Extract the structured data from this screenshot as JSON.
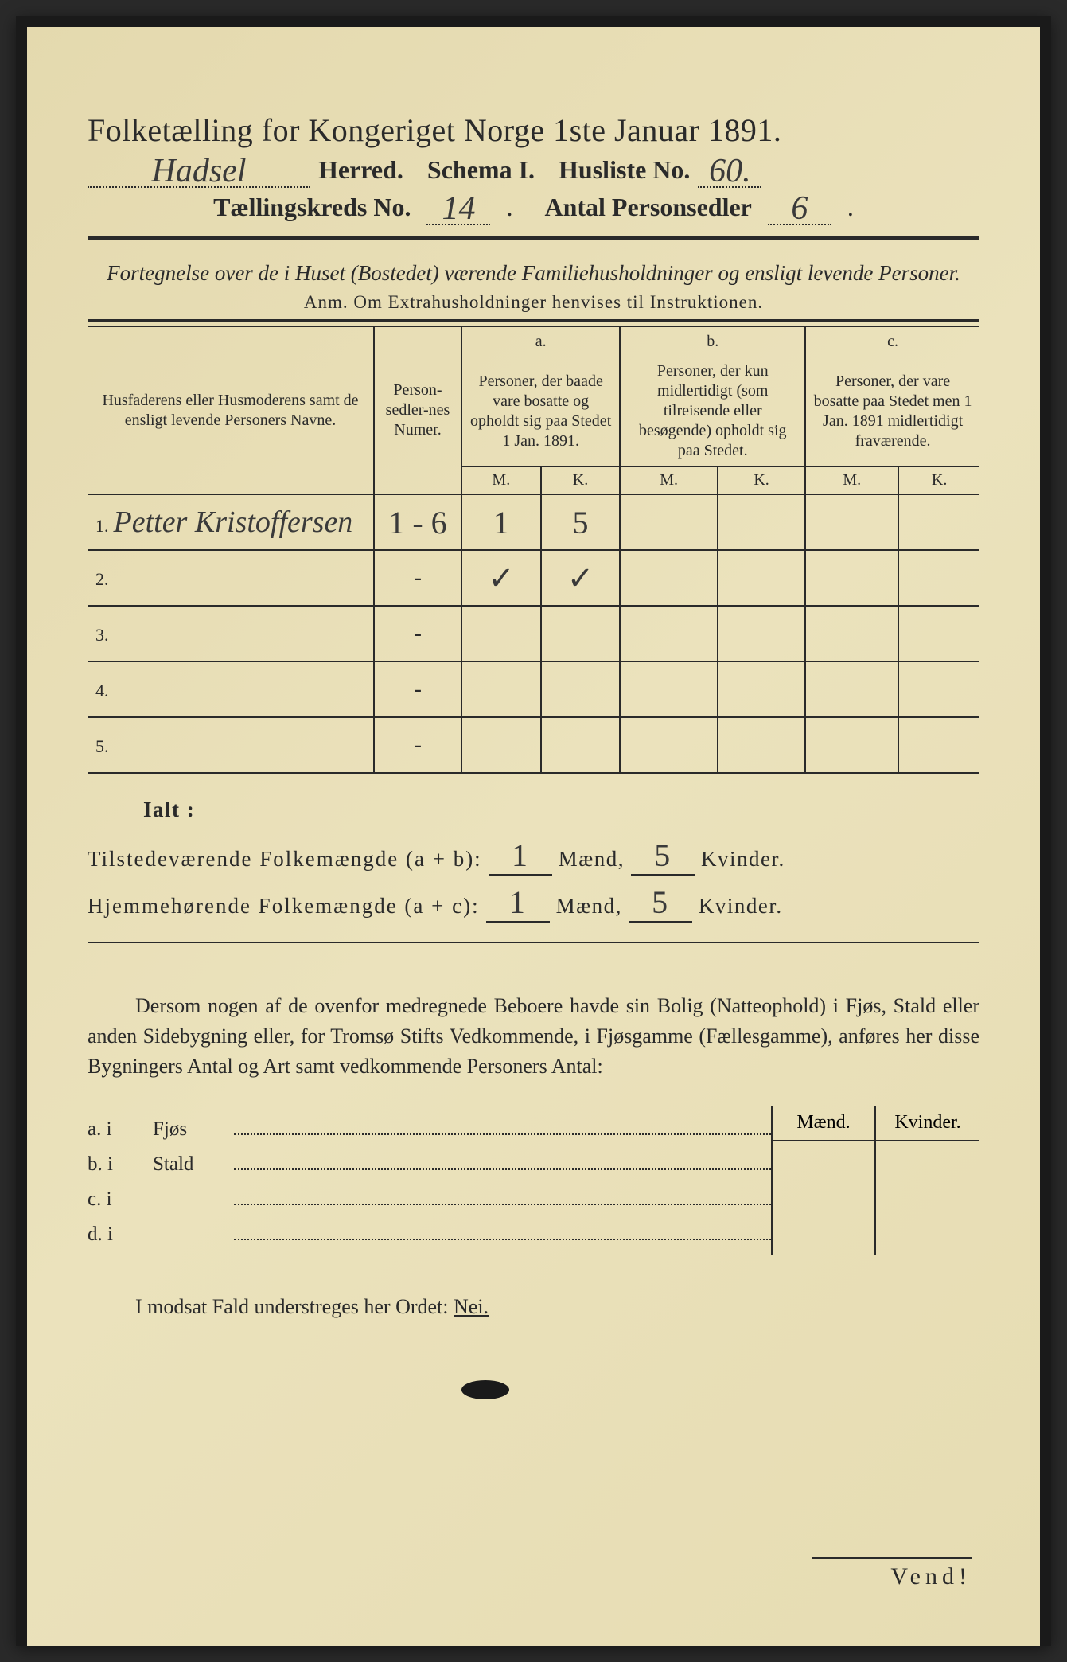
{
  "title": "Folketælling for Kongeriget Norge 1ste Januar 1891.",
  "header": {
    "herred_value": "Hadsel",
    "herred_label": "Herred.",
    "schema_label": "Schema I.",
    "husliste_label": "Husliste No.",
    "husliste_value": "60.",
    "kreds_label": "Tællingskreds No.",
    "kreds_value": "14",
    "antal_label": "Antal Personsedler",
    "antal_value": "6"
  },
  "subtitle": "Fortegnelse over de i Huset (Bostedet) værende Familiehusholdninger og ensligt levende Personer.",
  "anm": "Anm.  Om Extrahusholdninger henvises til Instruktionen.",
  "table": {
    "col_names": "Husfaderens eller Husmoderens samt de ensligt levende Personers Navne.",
    "col_numer": "Person-sedler-nes Numer.",
    "col_a_hdr": "a.",
    "col_a": "Personer, der baade vare bosatte og opholdt sig paa Stedet 1 Jan. 1891.",
    "col_b_hdr": "b.",
    "col_b": "Personer, der kun midlertidigt (som tilreisende eller besøgende) opholdt sig paa Stedet.",
    "col_c_hdr": "c.",
    "col_c": "Personer, der vare bosatte paa Stedet men 1 Jan. 1891 midlertidigt fraværende.",
    "m": "M.",
    "k": "K.",
    "rows": [
      {
        "num": "1.",
        "name": "Petter Kristoffersen",
        "numer": "1 - 6",
        "am": "1",
        "ak": "5",
        "bm": "",
        "bk": "",
        "cm": "",
        "ck": ""
      },
      {
        "num": "2.",
        "name": "",
        "numer": "-",
        "am": "✓",
        "ak": "✓",
        "bm": "",
        "bk": "",
        "cm": "",
        "ck": ""
      },
      {
        "num": "3.",
        "name": "",
        "numer": "-",
        "am": "",
        "ak": "",
        "bm": "",
        "bk": "",
        "cm": "",
        "ck": ""
      },
      {
        "num": "4.",
        "name": "",
        "numer": "-",
        "am": "",
        "ak": "",
        "bm": "",
        "bk": "",
        "cm": "",
        "ck": ""
      },
      {
        "num": "5.",
        "name": "",
        "numer": "-",
        "am": "",
        "ak": "",
        "bm": "",
        "bk": "",
        "cm": "",
        "ck": ""
      }
    ]
  },
  "ialt": {
    "label": "Ialt :",
    "row1_label": "Tilstedeværende Folkemængde (a + b):",
    "row2_label": "Hjemmehørende Folkemængde (a + c):",
    "maend": "Mænd,",
    "kvinder": "Kvinder.",
    "r1_m": "1",
    "r1_k": "5",
    "r2_m": "1",
    "r2_k": "5"
  },
  "para": "Dersom nogen af de ovenfor medregnede Beboere havde sin Bolig (Natteophold) i Fjøs, Stald eller anden Sidebygning eller, for Tromsø Stifts Vedkommende, i Fjøsgamme (Fællesgamme), anføres her disse Bygningers Antal og Art samt vedkommende Personers Antal:",
  "side": {
    "maend": "Mænd.",
    "kvinder": "Kvinder.",
    "rows": [
      {
        "lead": "a.  i",
        "label": "Fjøs"
      },
      {
        "lead": "b.  i",
        "label": "Stald"
      },
      {
        "lead": "c.  i",
        "label": ""
      },
      {
        "lead": "d.  i",
        "label": ""
      }
    ]
  },
  "nei": "I modsat Fald understreges her Ordet:",
  "nei_word": "Nei.",
  "vend": "Vend!",
  "colors": {
    "paper": "#e8dfb8",
    "ink": "#2a2a2a",
    "handwriting": "#3a3a3a",
    "border": "#1a1a1a"
  }
}
